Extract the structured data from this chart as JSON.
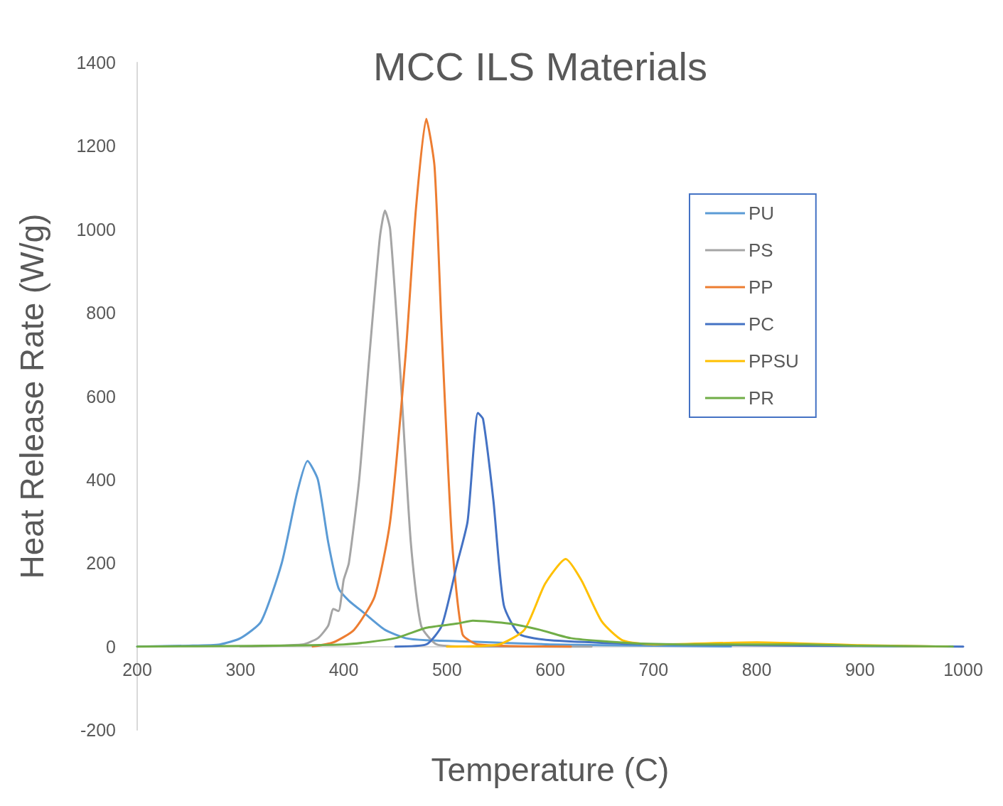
{
  "chart_data": {
    "type": "line",
    "title": "MCC ILS Materials",
    "xlabel": "Temperature (C)",
    "ylabel": "Heat Release Rate (W/g)",
    "xlim": [
      200,
      1000
    ],
    "xticks": [
      200,
      300,
      400,
      500,
      600,
      700,
      800,
      900,
      1000
    ],
    "ylim": [
      -200,
      1400
    ],
    "yticks": [
      -200,
      0,
      200,
      400,
      600,
      800,
      1000,
      1200,
      1400
    ],
    "grid": false,
    "legend": "right",
    "marker": "none",
    "line_style": "solid",
    "series": [
      {
        "name": "PU",
        "color": "#5b9bd5",
        "x": [
          200,
          250,
          280,
          300,
          320,
          340,
          355,
          365,
          375,
          385,
          395,
          405,
          420,
          440,
          460,
          480,
          520,
          600,
          700,
          775
        ],
        "values": [
          0,
          2,
          5,
          20,
          60,
          200,
          370,
          445,
          400,
          250,
          140,
          110,
          80,
          40,
          20,
          15,
          12,
          5,
          2,
          0
        ]
      },
      {
        "name": "PS",
        "color": "#a5a5a5",
        "x": [
          300,
          360,
          375,
          385,
          390,
          395,
          400,
          405,
          415,
          425,
          435,
          440,
          445,
          455,
          465,
          475,
          490,
          520,
          640
        ],
        "values": [
          0,
          5,
          20,
          50,
          90,
          85,
          160,
          200,
          400,
          700,
          980,
          1045,
          1000,
          650,
          250,
          50,
          5,
          0,
          0
        ]
      },
      {
        "name": "PP",
        "color": "#ed7d31",
        "x": [
          370,
          390,
          410,
          430,
          445,
          460,
          470,
          480,
          488,
          495,
          505,
          515,
          530,
          620
        ],
        "values": [
          0,
          10,
          40,
          120,
          300,
          700,
          1050,
          1265,
          1150,
          750,
          250,
          30,
          5,
          0
        ]
      },
      {
        "name": "PC",
        "color": "#4472c4",
        "x": [
          450,
          480,
          495,
          510,
          520,
          530,
          535,
          545,
          555,
          570,
          600,
          700,
          1000
        ],
        "values": [
          0,
          5,
          50,
          200,
          300,
          560,
          545,
          350,
          100,
          30,
          15,
          5,
          0
        ]
      },
      {
        "name": "PPSU",
        "color": "#ffc000",
        "x": [
          500,
          550,
          575,
          595,
          615,
          630,
          650,
          670,
          700,
          800,
          900,
          985
        ],
        "values": [
          0,
          5,
          40,
          150,
          210,
          160,
          60,
          15,
          5,
          10,
          3,
          0
        ]
      },
      {
        "name": "PR",
        "color": "#70ad47",
        "x": [
          200,
          400,
          450,
          480,
          510,
          525,
          560,
          590,
          620,
          680,
          750,
          850,
          900,
          990
        ],
        "values": [
          0,
          5,
          20,
          45,
          55,
          62,
          55,
          40,
          20,
          8,
          5,
          5,
          2,
          0
        ]
      }
    ]
  }
}
